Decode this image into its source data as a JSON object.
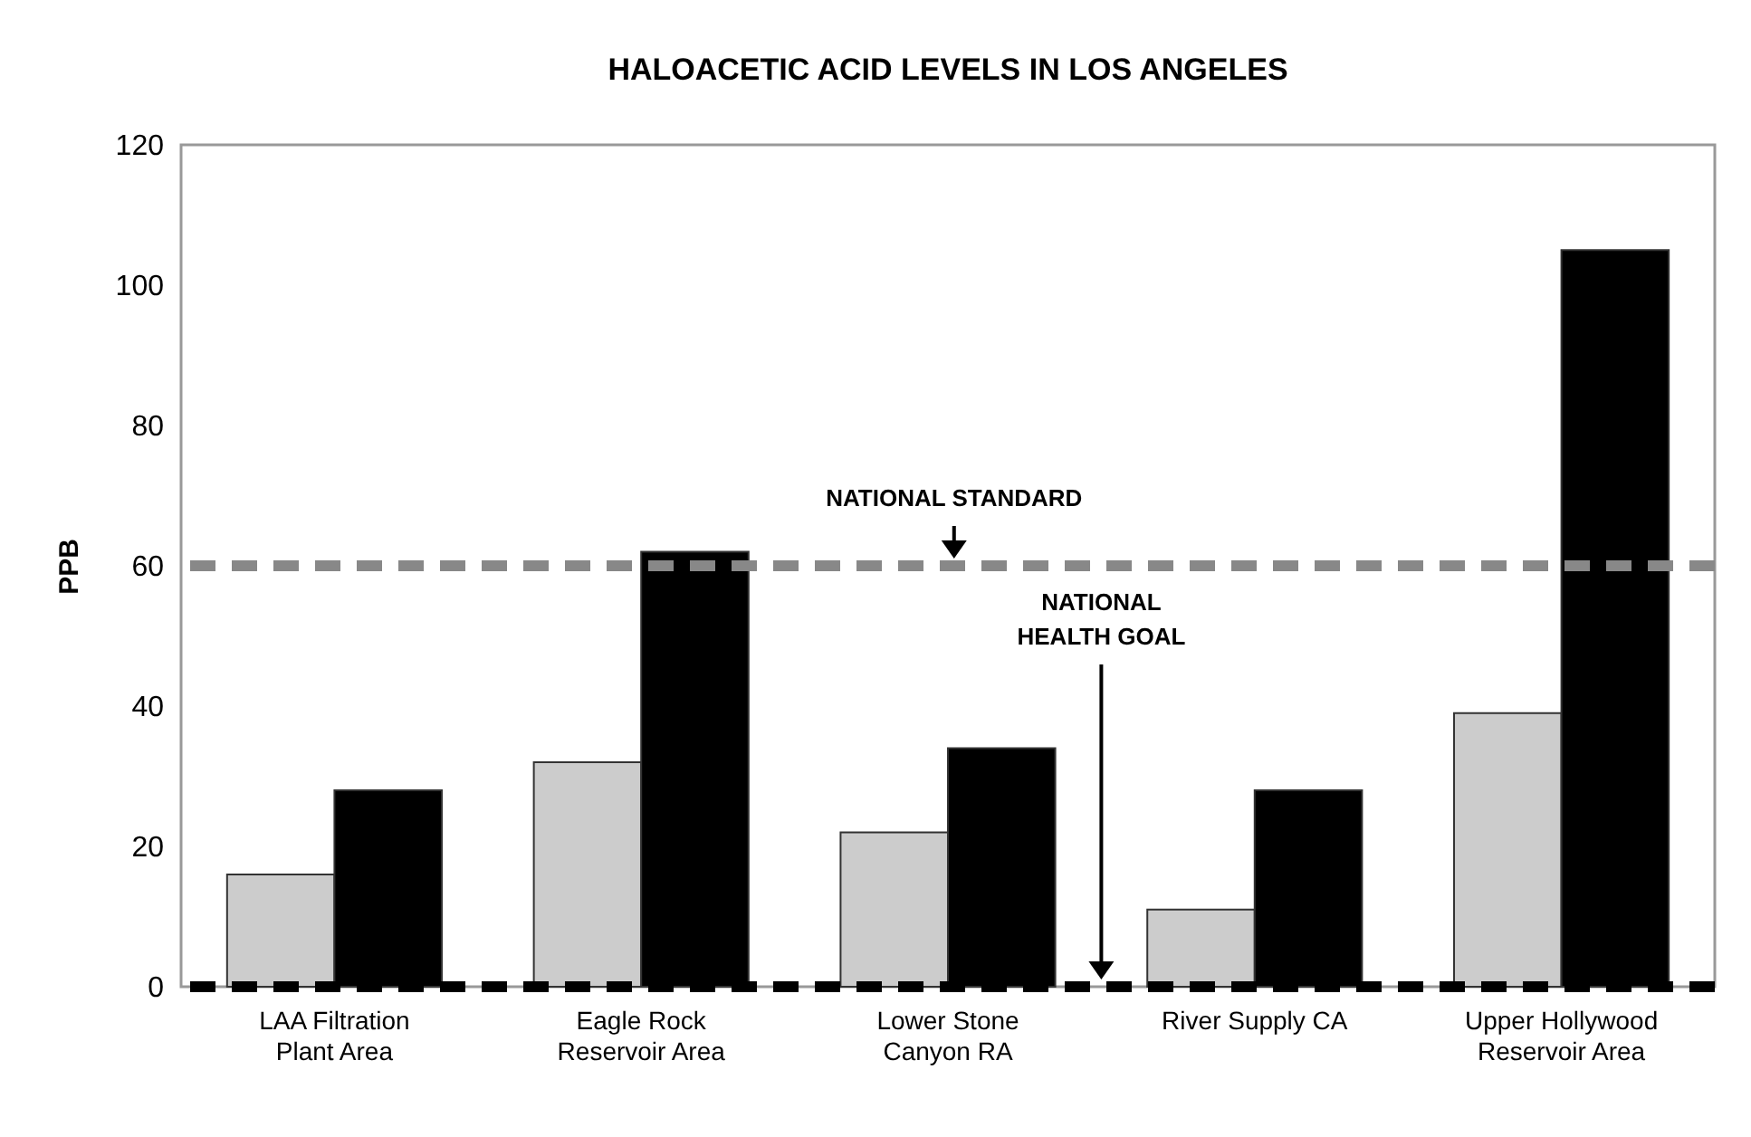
{
  "chart_data": {
    "type": "bar",
    "title": "HALOACETIC ACID LEVELS IN LOS ANGELES",
    "ylabel": "PPB",
    "categories": [
      "LAA Filtration Plant Area",
      "Eagle Rock Reservoir Area",
      "Lower Stone Canyon RA",
      "River Supply CA",
      "Upper Hollywood Reservoir Area"
    ],
    "series": [
      {
        "color": "#cccccc",
        "values": [
          16,
          32,
          22,
          11,
          39
        ]
      },
      {
        "color": "#000000",
        "values": [
          28,
          62,
          34,
          28,
          105
        ]
      }
    ],
    "ylim": [
      0,
      120
    ],
    "yticks": [
      0,
      20,
      40,
      60,
      80,
      100,
      120
    ],
    "ref_lines": [
      {
        "axis": "y",
        "value": 60,
        "label": "NATIONAL STANDARD",
        "color": "#888888",
        "line_style": "dashed"
      },
      {
        "axis": "y",
        "value": 0,
        "label": "NATIONAL\nHEALTH GOAL",
        "color": "#000000",
        "line_style": "dashed"
      }
    ]
  }
}
